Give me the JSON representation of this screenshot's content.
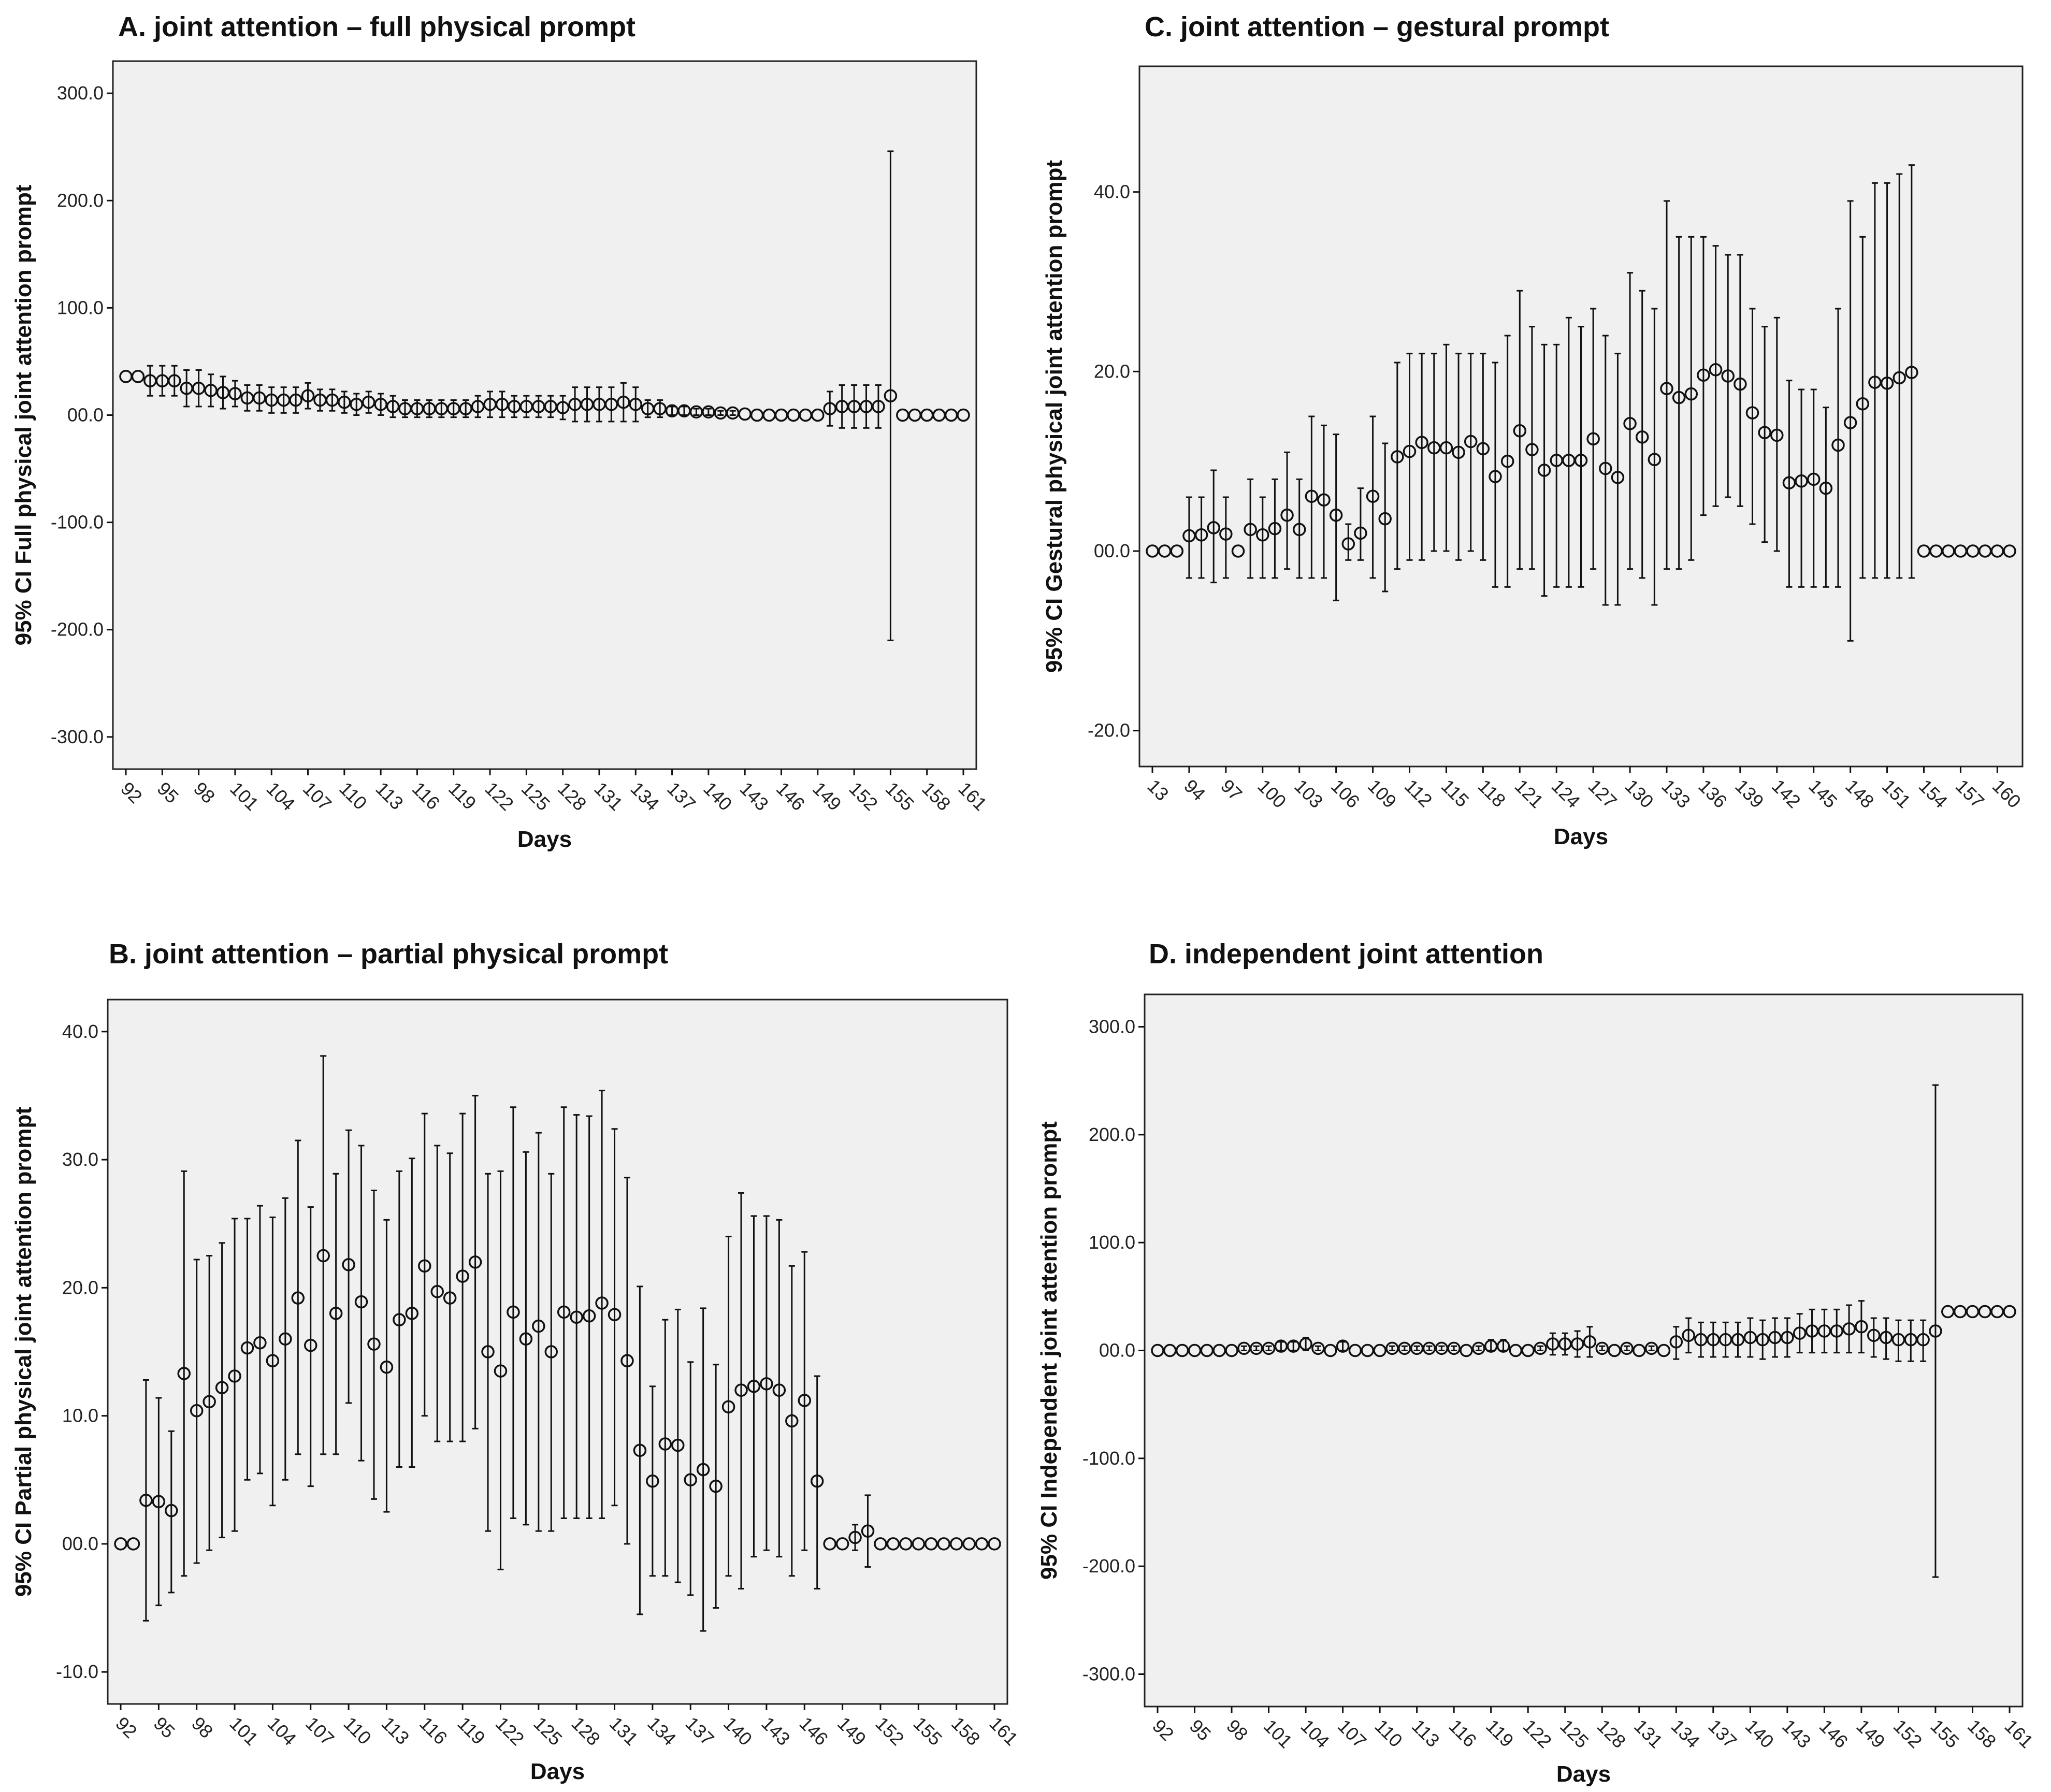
{
  "chart_data": [
    {
      "panel": "A",
      "type": "scatter",
      "title": "A. joint attention – full physical prompt",
      "xlabel": "Days",
      "ylabel": "95% CI Full physical joint attention prompt",
      "ylim": [
        -330,
        330
      ],
      "yticks": [
        300,
        200,
        100,
        0,
        -100,
        -200,
        -300
      ],
      "ytick_labels": [
        "300.0",
        "200.0",
        "100.0",
        "00.0",
        "-100.0",
        "-200.0",
        "-300.0"
      ],
      "xtick_labels": [
        "92",
        "95",
        "98",
        "101",
        "104",
        "107",
        "110",
        "113",
        "116",
        "119",
        "122",
        "125",
        "128",
        "131",
        "134",
        "137",
        "140",
        "143",
        "146",
        "149",
        "152",
        "155",
        "158",
        "161"
      ],
      "x": [
        92,
        93,
        94,
        95,
        96,
        97,
        98,
        99,
        100,
        101,
        102,
        103,
        104,
        105,
        106,
        107,
        108,
        109,
        110,
        111,
        112,
        113,
        114,
        115,
        116,
        117,
        118,
        119,
        120,
        121,
        122,
        123,
        124,
        125,
        126,
        127,
        128,
        129,
        130,
        131,
        132,
        133,
        134,
        135,
        136,
        137,
        138,
        139,
        140,
        141,
        142,
        143,
        144,
        145,
        146,
        147,
        148,
        149,
        150,
        151,
        152,
        153,
        154,
        155,
        156,
        157,
        158,
        159,
        160,
        161
      ],
      "mean": [
        36,
        36,
        32,
        32,
        32,
        25,
        25,
        23,
        21,
        20,
        16,
        16,
        14,
        14,
        14,
        18,
        14,
        14,
        12,
        10,
        12,
        10,
        8,
        6,
        6,
        6,
        6,
        6,
        6,
        8,
        10,
        10,
        8,
        8,
        8,
        8,
        7,
        10,
        10,
        10,
        10,
        12,
        10,
        6,
        6,
        4,
        4,
        3,
        3,
        2,
        2,
        1,
        0,
        0,
        0,
        0,
        0,
        0,
        6,
        8,
        8,
        8,
        8,
        18,
        0,
        0,
        0,
        0,
        0,
        0
      ],
      "lower": [
        36,
        36,
        18,
        18,
        18,
        8,
        8,
        8,
        6,
        8,
        4,
        4,
        2,
        2,
        2,
        6,
        4,
        4,
        2,
        0,
        2,
        0,
        -2,
        -2,
        -2,
        -2,
        -2,
        -2,
        -2,
        -2,
        -2,
        -2,
        -2,
        -2,
        -2,
        -2,
        -4,
        -6,
        -6,
        -6,
        -6,
        -6,
        -6,
        -2,
        -2,
        0,
        0,
        0,
        0,
        0,
        0,
        1,
        0,
        0,
        0,
        0,
        0,
        0,
        -10,
        -12,
        -12,
        -12,
        -12,
        -210,
        0,
        0,
        0,
        0,
        0,
        0
      ],
      "upper": [
        36,
        36,
        46,
        46,
        46,
        42,
        42,
        38,
        36,
        32,
        28,
        28,
        26,
        26,
        26,
        30,
        24,
        24,
        22,
        20,
        22,
        20,
        18,
        14,
        14,
        14,
        14,
        14,
        14,
        18,
        22,
        22,
        18,
        18,
        18,
        18,
        18,
        26,
        26,
        26,
        26,
        30,
        26,
        14,
        14,
        8,
        8,
        6,
        6,
        4,
        4,
        1,
        0,
        0,
        0,
        0,
        0,
        0,
        22,
        28,
        28,
        28,
        28,
        246,
        0,
        0,
        0,
        0,
        0,
        0
      ]
    },
    {
      "panel": "C",
      "type": "scatter",
      "title": "C. joint attention – gestural prompt",
      "xlabel": "Days",
      "ylabel": "95% CI Gestural physical joint attention prompt",
      "ylim": [
        -24,
        54
      ],
      "yticks": [
        40,
        20,
        0,
        -20
      ],
      "ytick_labels": [
        "40.0",
        "20.0",
        "00.0",
        "-20.0"
      ],
      "xtick_labels": [
        "13",
        "94",
        "97",
        "100",
        "103",
        "106",
        "109",
        "112",
        "115",
        "118",
        "121",
        "124",
        "127",
        "130",
        "133",
        "136",
        "139",
        "142",
        "145",
        "148",
        "151",
        "154",
        "157",
        "160"
      ],
      "x": [
        91,
        92,
        93,
        94,
        95,
        96,
        97,
        98,
        99,
        100,
        101,
        102,
        103,
        104,
        105,
        106,
        107,
        108,
        109,
        110,
        111,
        112,
        113,
        114,
        115,
        116,
        117,
        118,
        119,
        120,
        121,
        122,
        123,
        124,
        125,
        126,
        127,
        128,
        129,
        130,
        131,
        132,
        133,
        134,
        135,
        136,
        137,
        138,
        139,
        140,
        141,
        142,
        143,
        144,
        145,
        146,
        147,
        148,
        149,
        150,
        151,
        152,
        153,
        154,
        155,
        156,
        157,
        158,
        159,
        160,
        161
      ],
      "mean": [
        0,
        0,
        0,
        1.7,
        1.8,
        2.6,
        1.9,
        0,
        2.4,
        1.8,
        2.5,
        4.0,
        2.4,
        6.1,
        5.7,
        4.0,
        0.8,
        2.0,
        6.1,
        3.6,
        10.5,
        11.1,
        12.1,
        11.5,
        11.5,
        11.0,
        12.2,
        11.4,
        8.3,
        10.0,
        13.4,
        11.3,
        9.0,
        10.1,
        10.1,
        10.1,
        12.5,
        9.2,
        8.2,
        14.2,
        12.7,
        10.2,
        18.1,
        17.1,
        17.5,
        19.6,
        20.2,
        19.5,
        18.6,
        15.4,
        13.2,
        12.9,
        7.6,
        7.8,
        8.0,
        7.0,
        11.8,
        14.3,
        16.4,
        18.8,
        18.7,
        19.3,
        19.9,
        0,
        0,
        0,
        0,
        0,
        0,
        0,
        0
      ],
      "lower": [
        0,
        0,
        0,
        -3,
        -3,
        -3.5,
        -3,
        0,
        -3,
        -3,
        -3,
        -2,
        -3,
        -3,
        -3,
        -5.5,
        -1,
        -1,
        -3,
        -4.5,
        -2,
        -1,
        -1,
        0,
        0,
        -1,
        0,
        -1,
        -4,
        -4,
        -2,
        -2,
        -5,
        -4,
        -4,
        -4,
        -2,
        -6,
        -6,
        -2,
        -3,
        -6,
        -2,
        -2,
        -1,
        4,
        5,
        6,
        5,
        3,
        1,
        0,
        -4,
        -4,
        -4,
        -4,
        -4,
        -10,
        -3,
        -3,
        -3,
        -3,
        -3,
        0,
        0,
        0,
        0,
        0,
        0,
        0,
        0
      ],
      "upper": [
        0,
        0,
        0,
        6,
        6,
        9,
        6,
        0,
        8,
        6,
        8,
        11,
        8,
        15,
        14,
        13,
        3,
        7,
        15,
        12,
        21,
        22,
        22,
        22,
        23,
        22,
        22,
        22,
        21,
        24,
        29,
        25,
        23,
        23,
        26,
        25,
        27,
        24,
        22,
        31,
        29,
        27,
        39,
        35,
        35,
        35,
        34,
        33,
        33,
        27,
        25,
        26,
        19,
        18,
        18,
        16,
        27,
        39,
        35,
        41,
        41,
        42,
        43,
        0,
        0,
        0,
        0,
        0,
        0,
        0,
        0
      ]
    },
    {
      "panel": "B",
      "type": "scatter",
      "title": "B. joint attention – partial physical prompt",
      "xlabel": "Days",
      "ylabel": "95% CI Partial physical joint attention prompt",
      "ylim": [
        -12.5,
        42.5
      ],
      "yticks": [
        40,
        30,
        20,
        10,
        0,
        -10
      ],
      "ytick_labels": [
        "40.0",
        "30.0",
        "20.0",
        "10.0",
        "00.0",
        "-10.0"
      ],
      "xtick_labels": [
        "92",
        "95",
        "98",
        "101",
        "104",
        "107",
        "110",
        "113",
        "116",
        "119",
        "122",
        "125",
        "128",
        "131",
        "134",
        "137",
        "140",
        "143",
        "146",
        "149",
        "152",
        "155",
        "158",
        "161"
      ],
      "x": [
        92,
        93,
        94,
        95,
        96,
        97,
        98,
        99,
        100,
        101,
        102,
        103,
        104,
        105,
        106,
        107,
        108,
        109,
        110,
        111,
        112,
        113,
        114,
        115,
        116,
        117,
        118,
        119,
        120,
        121,
        122,
        123,
        124,
        125,
        126,
        127,
        128,
        129,
        130,
        131,
        132,
        133,
        134,
        135,
        136,
        137,
        138,
        139,
        140,
        141,
        142,
        143,
        144,
        145,
        146,
        147,
        148,
        149,
        150,
        151,
        152,
        153,
        154,
        155,
        156,
        157,
        158,
        159,
        160,
        161
      ],
      "mean": [
        0,
        0,
        3.4,
        3.3,
        2.6,
        13.3,
        10.4,
        11.1,
        12.2,
        13.1,
        15.3,
        15.7,
        14.3,
        16.0,
        19.2,
        15.5,
        22.5,
        18.0,
        21.8,
        18.9,
        15.6,
        13.8,
        17.5,
        18.0,
        21.7,
        19.7,
        19.2,
        20.9,
        22.0,
        15.0,
        13.5,
        18.1,
        16.0,
        17.0,
        15.0,
        18.1,
        17.7,
        17.8,
        18.8,
        17.9,
        14.3,
        7.3,
        4.9,
        7.8,
        7.7,
        5.0,
        5.8,
        4.5,
        10.7,
        12.0,
        12.3,
        12.5,
        12.0,
        9.6,
        11.2,
        4.9,
        0,
        0,
        0.5,
        1.0,
        0,
        0,
        0,
        0,
        0,
        0,
        0,
        0,
        0,
        0
      ],
      "lower": [
        0,
        0,
        -6,
        -4.8,
        -3.8,
        -2.5,
        -1.5,
        -0.5,
        0.5,
        1,
        5,
        5.5,
        3,
        5,
        7,
        4.5,
        7,
        7,
        11,
        6.5,
        3.5,
        2.5,
        6,
        6,
        10,
        8,
        8,
        8,
        9,
        1,
        -2,
        2,
        1.5,
        1,
        1,
        2,
        2,
        2,
        2,
        3,
        0,
        -5.5,
        -2.5,
        -2.5,
        -3,
        -4,
        -6.8,
        -5,
        -2.5,
        -3.5,
        -1,
        -0.5,
        -1,
        -2.5,
        -0.5,
        -3.5,
        0,
        0,
        -0.5,
        -1.8,
        0,
        0,
        0,
        0,
        0,
        0,
        0,
        0,
        0,
        0
      ],
      "upper": [
        0,
        0,
        12.8,
        11.4,
        8.8,
        29.1,
        22.2,
        22.5,
        23.5,
        25.4,
        25.4,
        26.4,
        25.5,
        27.0,
        31.5,
        26.3,
        38.1,
        28.9,
        32.3,
        31.1,
        27.6,
        25.3,
        29.1,
        30.1,
        33.6,
        31.1,
        30.5,
        33.6,
        35.0,
        28.9,
        29.1,
        34.1,
        30.6,
        32.1,
        28.9,
        34.1,
        33.5,
        33.4,
        35.4,
        32.4,
        28.6,
        20.1,
        12.3,
        17.5,
        18.3,
        14.2,
        18.4,
        14.0,
        24.0,
        27.4,
        25.6,
        25.6,
        25.3,
        21.7,
        22.8,
        13.1,
        0,
        0,
        1.5,
        3.8,
        0,
        0,
        0,
        0,
        0,
        0,
        0,
        0,
        0,
        0
      ]
    },
    {
      "panel": "D",
      "type": "scatter",
      "title": "D. independent joint attention",
      "xlabel": "Days",
      "ylabel": "95% CI Independent joint attention prompt",
      "ylim": [
        -330,
        330
      ],
      "yticks": [
        300,
        200,
        100,
        0,
        -100,
        -200,
        -300
      ],
      "ytick_labels": [
        "300.0",
        "200.0",
        "100.0",
        "00.0",
        "-100.0",
        "-200.0",
        "-300.0"
      ],
      "xtick_labels": [
        "92",
        "95",
        "98",
        "101",
        "104",
        "107",
        "110",
        "113",
        "116",
        "119",
        "122",
        "125",
        "128",
        "131",
        "134",
        "137",
        "140",
        "143",
        "146",
        "149",
        "152",
        "155",
        "158",
        "161"
      ],
      "x": [
        92,
        93,
        94,
        95,
        96,
        97,
        98,
        99,
        100,
        101,
        102,
        103,
        104,
        105,
        106,
        107,
        108,
        109,
        110,
        111,
        112,
        113,
        114,
        115,
        116,
        117,
        118,
        119,
        120,
        121,
        122,
        123,
        124,
        125,
        126,
        127,
        128,
        129,
        130,
        131,
        132,
        133,
        134,
        135,
        136,
        137,
        138,
        139,
        140,
        141,
        142,
        143,
        144,
        145,
        146,
        147,
        148,
        149,
        150,
        151,
        152,
        153,
        154,
        155,
        156,
        157,
        158,
        159,
        160,
        161
      ],
      "mean": [
        0,
        0,
        0,
        0,
        0,
        0,
        0,
        2,
        2,
        2,
        4,
        4,
        6,
        2,
        0,
        4,
        0,
        0,
        0,
        2,
        2,
        2,
        2,
        2,
        2,
        0,
        2,
        4,
        4,
        0,
        0,
        2,
        6,
        6,
        6,
        8,
        2,
        0,
        2,
        0,
        2,
        0,
        8,
        14,
        10,
        10,
        10,
        10,
        12,
        10,
        12,
        12,
        16,
        18,
        18,
        18,
        20,
        22,
        14,
        12,
        10,
        10,
        10,
        18,
        36,
        36,
        36,
        36,
        36,
        36
      ],
      "lower": [
        0,
        0,
        0,
        0,
        0,
        0,
        0,
        0,
        0,
        0,
        0,
        0,
        0,
        0,
        0,
        0,
        0,
        0,
        0,
        0,
        0,
        0,
        0,
        0,
        0,
        0,
        0,
        0,
        0,
        0,
        0,
        0,
        -4,
        -4,
        -6,
        -6,
        0,
        0,
        0,
        0,
        0,
        0,
        -8,
        -2,
        -6,
        -6,
        -6,
        -6,
        -6,
        -8,
        -6,
        -6,
        -2,
        -2,
        -2,
        -2,
        -2,
        -2,
        -6,
        -8,
        -10,
        -10,
        -10,
        -210,
        36,
        36,
        36,
        36,
        36,
        36
      ],
      "upper": [
        0,
        0,
        0,
        0,
        0,
        0,
        0,
        4,
        4,
        4,
        8,
        8,
        12,
        4,
        0,
        8,
        0,
        0,
        0,
        4,
        4,
        4,
        4,
        4,
        4,
        0,
        4,
        10,
        10,
        0,
        0,
        4,
        16,
        16,
        18,
        22,
        4,
        0,
        4,
        0,
        4,
        0,
        22,
        30,
        26,
        26,
        26,
        26,
        30,
        28,
        30,
        30,
        34,
        38,
        38,
        38,
        42,
        46,
        30,
        30,
        28,
        28,
        28,
        246,
        36,
        36,
        36,
        36,
        36,
        36
      ]
    }
  ]
}
